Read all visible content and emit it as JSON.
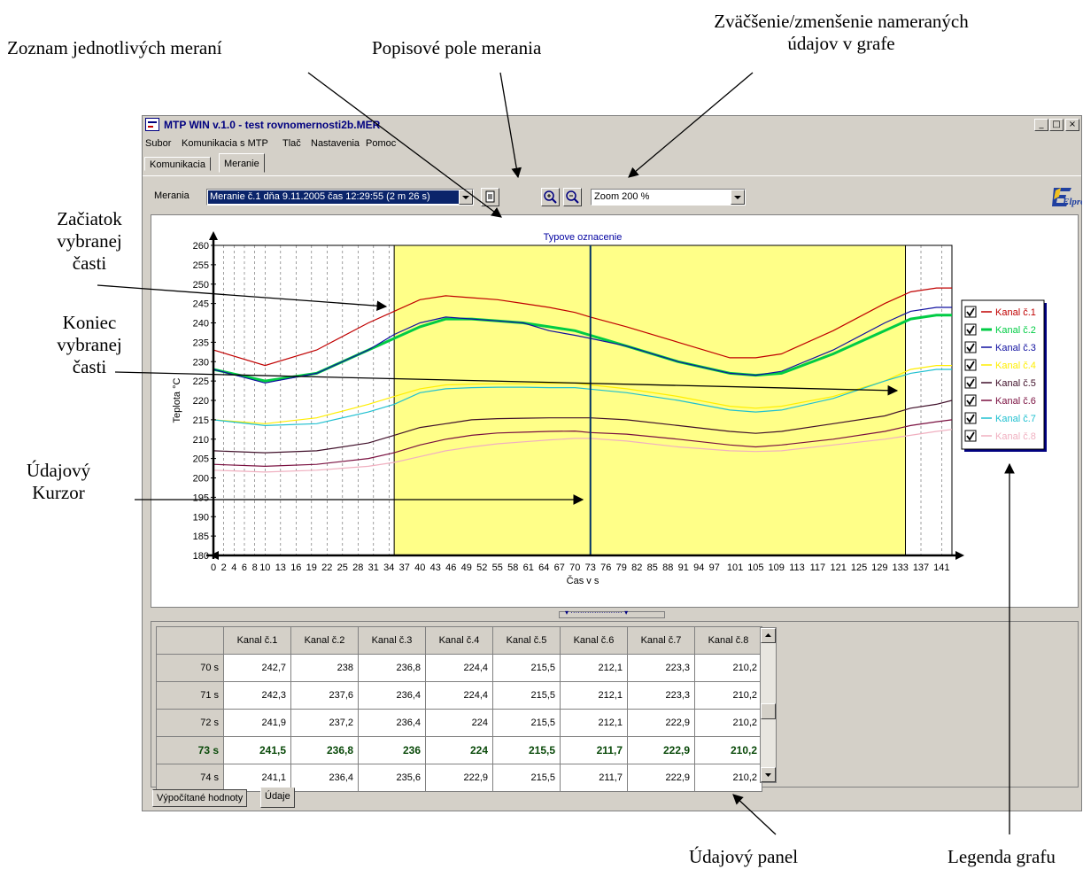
{
  "annotations": {
    "list_of_measurements": "Zoznam jednotlivých meraní",
    "description_field": "Popisové pole merania",
    "zoom_title_line1": "Zväčšenie/zmenšenie nameraných",
    "zoom_title_line2": "údajov v grafe",
    "start_line1": "Začiatok",
    "start_line2": "vybranej",
    "start_line3": "časti",
    "end_line1": "Koniec",
    "end_line2": "vybranej",
    "end_line3": "časti",
    "cursor_line1": "Údajový",
    "cursor_line2": "Kurzor",
    "data_panel": "Údajový panel",
    "chart_legend": "Legenda grafu"
  },
  "window": {
    "title": "MTP WIN  v.1.0 - test rovnomernosti2b.MER",
    "minimize": "_",
    "maximize": "□",
    "close": "×"
  },
  "menu": [
    "Subor",
    "Komunikacia s MTP",
    "Tlač",
    "Nastavenia",
    "Pomoc"
  ],
  "tabs": [
    "Komunikacia",
    "Meranie"
  ],
  "toolbar": {
    "measurements_label": "Merania",
    "measurement_value": "Meranie č.1 dňa 9.11.2005 čas 12:29:55 (2 m 26 s)",
    "zoom_value": "Zoom 200 %",
    "icons": [
      "description-icon",
      "zoom-in-icon",
      "zoom-out-icon"
    ],
    "logo_text": "Elpro"
  },
  "chart_data": {
    "type": "line",
    "title": "Typove oznacenie",
    "xlabel": "Čas v s",
    "ylabel": "Teplota °C",
    "ylim": [
      180,
      260
    ],
    "xlim": [
      0,
      143
    ],
    "y_ticks": [
      180,
      185,
      190,
      195,
      200,
      205,
      210,
      215,
      220,
      225,
      230,
      235,
      240,
      245,
      250,
      255,
      260
    ],
    "x_tick_labels": [
      "0",
      "2",
      "4",
      "6",
      "8",
      "10",
      "13",
      "16",
      "19",
      "22",
      "25",
      "28",
      "31",
      "34",
      "37",
      "40",
      "43",
      "46",
      "49",
      "52",
      "55",
      "58",
      "61",
      "64",
      "67",
      "70",
      "73",
      "76",
      "79",
      "82",
      "85",
      "88",
      "91",
      "94",
      "97",
      "101",
      "105",
      "109",
      "113",
      "117",
      "121",
      "125",
      "129",
      "133",
      "137",
      "141"
    ],
    "selection_start": 35,
    "selection_end": 134,
    "cursor": 73,
    "grid_x": true,
    "grid_y": false,
    "legend_position": "right",
    "x": [
      0,
      10,
      20,
      30,
      35,
      40,
      45,
      50,
      55,
      60,
      65,
      70,
      73,
      80,
      90,
      100,
      105,
      110,
      120,
      130,
      135,
      140,
      143
    ],
    "series": [
      {
        "name": "Kanal č.1",
        "color": "#c00000",
        "values": [
          233,
          229,
          233,
          240,
          243,
          246,
          247,
          246.5,
          246,
          245,
          244,
          242.7,
          241.5,
          239,
          235,
          231,
          231,
          232,
          238,
          245,
          248,
          249,
          249
        ]
      },
      {
        "name": "Kanal č.2",
        "color": "#00cc44",
        "values": [
          228,
          225,
          227,
          233,
          236,
          239,
          241,
          241,
          240.5,
          240,
          239,
          238,
          236.8,
          234,
          230,
          227,
          226.5,
          227,
          232,
          238,
          241,
          242,
          242
        ]
      },
      {
        "name": "Kanal č.3",
        "color": "#1010a0",
        "values": [
          228,
          224.5,
          227,
          233,
          237,
          240,
          241.5,
          241,
          240.5,
          240,
          238,
          236.8,
          236,
          234,
          230,
          227,
          226.5,
          227.5,
          233,
          240,
          243,
          244,
          244
        ]
      },
      {
        "name": "Kanal č.4",
        "color": "#ffee00",
        "values": [
          215,
          214,
          215.5,
          219,
          221,
          223,
          224,
          224.2,
          224.3,
          224.3,
          224.4,
          224.4,
          224,
          223,
          221,
          218.5,
          218,
          218.5,
          221,
          225,
          228,
          229,
          229
        ]
      },
      {
        "name": "Kanal č.5",
        "color": "#40102a",
        "values": [
          207,
          206.5,
          207,
          209,
          211,
          213,
          214,
          215,
          215.3,
          215.4,
          215.5,
          215.5,
          215.5,
          215,
          213.5,
          212,
          211.5,
          212,
          214,
          216,
          218,
          219,
          220
        ]
      },
      {
        "name": "Kanal č.6",
        "color": "#7a1040",
        "values": [
          203.5,
          203,
          203.5,
          205,
          206.5,
          208.5,
          210,
          211,
          211.6,
          211.8,
          212,
          212.1,
          211.7,
          211.3,
          210,
          208.5,
          208,
          208.5,
          210,
          212,
          213.5,
          214.5,
          215
        ]
      },
      {
        "name": "Kanal č.7",
        "color": "#20c0d0",
        "values": [
          215,
          213.5,
          214,
          217,
          219,
          222,
          223,
          223.3,
          223.4,
          223.4,
          223.3,
          223.3,
          222.9,
          222,
          220,
          217.5,
          217,
          217.5,
          220.5,
          225,
          227,
          228,
          228
        ]
      },
      {
        "name": "Kanal č.8",
        "color": "#f0b0c0",
        "values": [
          202,
          201.5,
          202,
          203,
          204,
          205.5,
          207,
          208,
          208.8,
          209.3,
          209.8,
          210.2,
          210.2,
          209.5,
          208,
          207,
          206.8,
          207,
          208.5,
          210,
          211,
          212,
          212.5
        ]
      }
    ]
  },
  "data_panel": {
    "columns": [
      "",
      "Kanal č.1",
      "Kanal č.2",
      "Kanal č.3",
      "Kanal č.4",
      "Kanal č.5",
      "Kanal č.6",
      "Kanal č.7",
      "Kanal č.8"
    ],
    "rows": [
      [
        "70 s",
        "242,7",
        "238",
        "236,8",
        "224,4",
        "215,5",
        "212,1",
        "223,3",
        "210,2"
      ],
      [
        "71 s",
        "242,3",
        "237,6",
        "236,4",
        "224,4",
        "215,5",
        "212,1",
        "223,3",
        "210,2"
      ],
      [
        "72 s",
        "241,9",
        "237,2",
        "236,4",
        "224",
        "215,5",
        "212,1",
        "222,9",
        "210,2"
      ],
      [
        "73 s",
        "241,5",
        "236,8",
        "236",
        "224",
        "215,5",
        "211,7",
        "222,9",
        "210,2"
      ],
      [
        "74 s",
        "241,1",
        "236,4",
        "235,6",
        "222,9",
        "215,5",
        "211,7",
        "222,9",
        "210,2"
      ]
    ],
    "highlighted_row_index": 3,
    "tabs": [
      "Výpočítané hodnoty",
      "Údaje"
    ]
  }
}
